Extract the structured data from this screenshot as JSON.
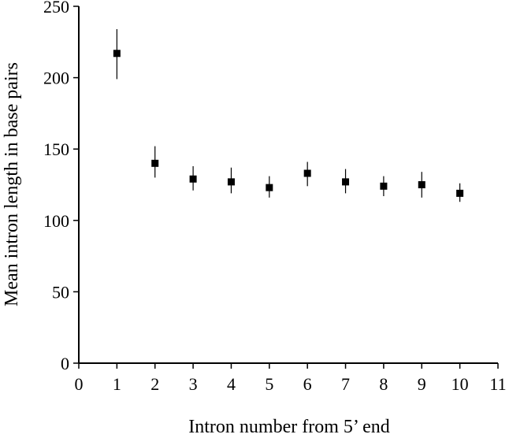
{
  "chart_data": {
    "type": "scatter",
    "title": "",
    "xlabel": "Intron number from 5’ end",
    "ylabel": "Mean intron length in base pairs",
    "xlim": [
      0,
      11
    ],
    "ylim": [
      0,
      250
    ],
    "x_ticks": [
      0,
      1,
      2,
      3,
      4,
      5,
      6,
      7,
      8,
      9,
      10,
      11
    ],
    "y_ticks": [
      0,
      50,
      100,
      150,
      200,
      250
    ],
    "grid": false,
    "legend": "none",
    "marker": "square",
    "color": "#000000",
    "series": [
      {
        "points": [
          {
            "x": 1,
            "y": 217,
            "err_low": 199,
            "err_high": 234
          },
          {
            "x": 2,
            "y": 140,
            "err_low": 130,
            "err_high": 152
          },
          {
            "x": 3,
            "y": 129,
            "err_low": 121,
            "err_high": 138
          },
          {
            "x": 4,
            "y": 127,
            "err_low": 119,
            "err_high": 137
          },
          {
            "x": 5,
            "y": 123,
            "err_low": 116,
            "err_high": 131
          },
          {
            "x": 6,
            "y": 133,
            "err_low": 124,
            "err_high": 141
          },
          {
            "x": 7,
            "y": 127,
            "err_low": 119,
            "err_high": 136
          },
          {
            "x": 8,
            "y": 124,
            "err_low": 117,
            "err_high": 131
          },
          {
            "x": 9,
            "y": 125,
            "err_low": 116,
            "err_high": 134
          },
          {
            "x": 10,
            "y": 119,
            "err_low": 113,
            "err_high": 126
          }
        ]
      }
    ]
  }
}
